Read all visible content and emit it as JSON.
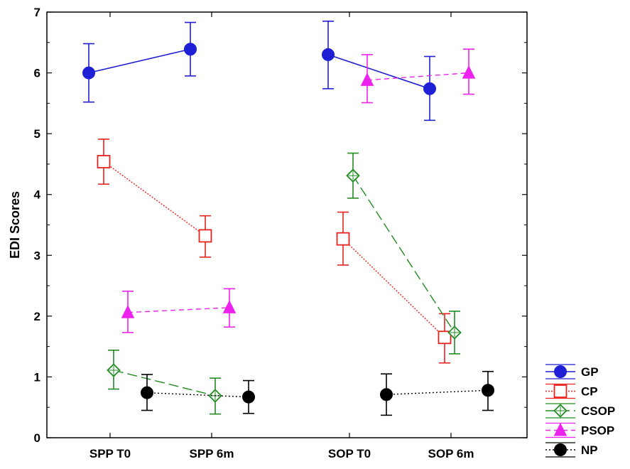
{
  "chart_data": {
    "type": "line",
    "title": "",
    "xlabel": "",
    "ylabel": "EDI Scores",
    "ylim": [
      0,
      7
    ],
    "yticks": [
      "0",
      "1",
      "2",
      "3",
      "4",
      "5",
      "6",
      "7"
    ],
    "categories": [
      "SPP T0",
      "SPP 6m",
      "SOP T0",
      "SOP 6m"
    ],
    "error_bars": true,
    "legend_position": "lower-right, outside plot",
    "series": [
      {
        "name": "GP",
        "color": "#1f1fd6",
        "line": "solid",
        "marker": "filled-circle",
        "points": [
          {
            "x": "SPP T0",
            "y": 6.0,
            "lo": 5.52,
            "hi": 6.48
          },
          {
            "x": "SPP 6m",
            "y": 6.39,
            "lo": 5.95,
            "hi": 6.83
          },
          {
            "x": "SOP T0",
            "y": 6.3,
            "lo": 5.74,
            "hi": 6.85
          },
          {
            "x": "SOP 6m",
            "y": 5.74,
            "lo": 5.22,
            "hi": 6.27
          }
        ]
      },
      {
        "name": "CP",
        "color": "#e8221e",
        "line": "dotted",
        "marker": "open-square",
        "points": [
          {
            "x": "SPP T0",
            "y": 4.54,
            "lo": 4.17,
            "hi": 4.91
          },
          {
            "x": "SPP 6m",
            "y": 3.32,
            "lo": 2.97,
            "hi": 3.65
          },
          {
            "x": "SOP T0",
            "y": 3.27,
            "lo": 2.84,
            "hi": 3.71
          },
          {
            "x": "SOP 6m",
            "y": 1.65,
            "lo": 1.23,
            "hi": 2.04
          }
        ]
      },
      {
        "name": "CSOP",
        "color": "#228b22",
        "line": "long-dash",
        "marker": "open-diamond",
        "points": [
          {
            "x": "SPP T0",
            "y": 1.11,
            "lo": 0.8,
            "hi": 1.44
          },
          {
            "x": "SPP 6m",
            "y": 0.69,
            "lo": 0.39,
            "hi": 0.98
          },
          {
            "x": "SOP T0",
            "y": 4.31,
            "lo": 3.94,
            "hi": 4.68
          },
          {
            "x": "SOP 6m",
            "y": 1.73,
            "lo": 1.38,
            "hi": 2.08
          }
        ]
      },
      {
        "name": "PSOP",
        "color": "#ee22ee",
        "line": "dashed",
        "marker": "filled-triangle",
        "points": [
          {
            "x": "SPP T0",
            "y": 2.06,
            "lo": 1.73,
            "hi": 2.41
          },
          {
            "x": "SPP 6m",
            "y": 2.14,
            "lo": 1.82,
            "hi": 2.45
          },
          {
            "x": "SOP T0",
            "y": 5.88,
            "lo": 5.51,
            "hi": 6.3
          },
          {
            "x": "SOP 6m",
            "y": 6.0,
            "lo": 5.65,
            "hi": 6.39
          }
        ]
      },
      {
        "name": "NP",
        "color": "#000000",
        "line": "fine-dotted",
        "marker": "filled-circle",
        "points": [
          {
            "x": "SPP T0",
            "y": 0.74,
            "lo": 0.45,
            "hi": 1.04
          },
          {
            "x": "SPP 6m",
            "y": 0.67,
            "lo": 0.4,
            "hi": 0.94
          },
          {
            "x": "SOP T0",
            "y": 0.71,
            "lo": 0.37,
            "hi": 1.05
          },
          {
            "x": "SOP 6m",
            "y": 0.78,
            "lo": 0.45,
            "hi": 1.09
          }
        ]
      }
    ]
  }
}
